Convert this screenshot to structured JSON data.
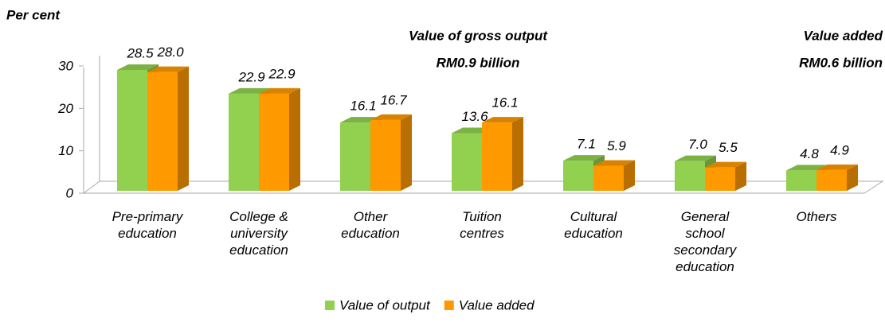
{
  "chart_data": {
    "type": "bar3d",
    "y_axis_label": "Per cent",
    "annotations": [
      {
        "lines": [
          "Value of gross output",
          "RM0.9 billion"
        ]
      },
      {
        "lines": [
          "Value added",
          "RM0.6 billion"
        ]
      }
    ],
    "categories": [
      "Pre-primary education",
      "College & university education",
      "Other education",
      "Tuition centres",
      "Cultural education",
      "General school secondary education",
      "Others"
    ],
    "series": [
      {
        "name": "Value of output",
        "color": "#92d050",
        "values": [
          28.5,
          22.9,
          16.1,
          13.6,
          7.1,
          7.0,
          4.8
        ],
        "value_labels": [
          "28.5",
          "22.9",
          "16.1",
          "13.6",
          "7.1",
          "7.0",
          "4.8"
        ]
      },
      {
        "name": "Value added",
        "color": "#ff9900",
        "values": [
          28.0,
          22.9,
          16.7,
          16.1,
          5.9,
          5.5,
          4.9
        ],
        "value_labels": [
          "28.0",
          "22.9",
          "16.7",
          "16.1",
          "5.9",
          "5.5",
          "4.9"
        ]
      }
    ],
    "ylim": [
      0,
      30
    ],
    "yticks": [
      0,
      10,
      20,
      30
    ],
    "legend": "bottom"
  }
}
